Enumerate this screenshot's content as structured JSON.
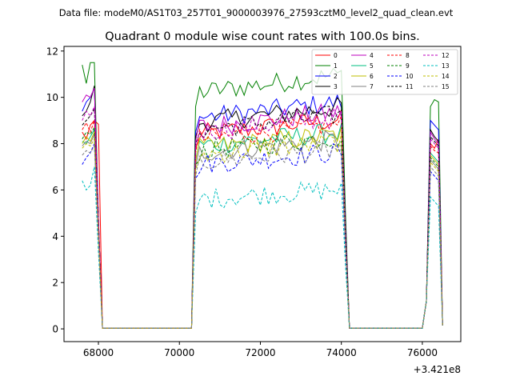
{
  "figure": {
    "suptitle": "Data file: modeM0/AS1T03_257T01_9000003976_27593cztM0_level2_quad_clean.evt",
    "title": "Quadrant 0 module wise count rates with 100.0s bins.",
    "offset_label": "+3.421e8"
  },
  "chart_data": {
    "type": "line",
    "title": "Quadrant 0 module wise count rates with 100.0s bins.",
    "xlabel": "",
    "ylabel": "",
    "x_offset": 342100000,
    "xlim": [
      67150,
      76950
    ],
    "ylim": [
      -0.55,
      12.2
    ],
    "xticks": [
      68000,
      70000,
      72000,
      74000,
      76000
    ],
    "xtick_labels": [
      "68000",
      "70000",
      "72000",
      "74000",
      "76000"
    ],
    "yticks": [
      0,
      2,
      4,
      6,
      8,
      10,
      12
    ],
    "ytick_labels": [
      "0",
      "2",
      "4",
      "6",
      "8",
      "10",
      "12"
    ],
    "grid": false,
    "legend_position": "top-right",
    "legend_columns": 4,
    "bin_width": 100,
    "segments": [
      {
        "x_start": 67600,
        "n": 5
      },
      {
        "x_start": 68000,
        "n": 22,
        "gap": true
      },
      {
        "x_start": 70300,
        "n": 36
      },
      {
        "x_start": 73900,
        "n": 3
      },
      {
        "x_start": 74200,
        "n": 19,
        "gap": true
      },
      {
        "x_start": 76100,
        "n": 5
      }
    ],
    "series": [
      {
        "name": "0",
        "color": "#ff0000",
        "dash": "solid",
        "level": 8.4,
        "first": [
          8.5,
          8.2,
          8.8,
          9.0,
          9.3
        ],
        "last": [
          8.0,
          7.8,
          8.2
        ]
      },
      {
        "name": "1",
        "color": "#008000",
        "dash": "solid",
        "level": 10.2,
        "first": [
          11.4,
          10.6,
          11.5,
          11.5,
          5.0
        ],
        "last": [
          9.6,
          9.9,
          9.8
        ]
      },
      {
        "name": "2",
        "color": "#0000ff",
        "dash": "solid",
        "level": 9.1,
        "first": [
          9.4,
          9.8,
          10.0,
          10.4,
          5.0
        ],
        "last": [
          9.0,
          8.8,
          8.6
        ]
      },
      {
        "name": "3",
        "color": "#000000",
        "dash": "solid",
        "level": 8.9,
        "first": [
          9.2,
          9.4,
          9.8,
          10.5,
          5.0
        ],
        "last": [
          8.6,
          8.3,
          8.1
        ]
      },
      {
        "name": "4",
        "color": "#bf00bf",
        "dash": "solid",
        "level": 8.7,
        "first": [
          9.8,
          10.1,
          10.0,
          10.4,
          5.0
        ],
        "last": [
          8.5,
          8.2,
          8.0
        ]
      },
      {
        "name": "5",
        "color": "#00bf80",
        "dash": "solid",
        "level": 7.9,
        "first": [
          8.1,
          8.0,
          8.3,
          8.6,
          4.5
        ],
        "last": [
          7.6,
          7.4,
          7.2
        ]
      },
      {
        "name": "6",
        "color": "#bfbf00",
        "dash": "solid",
        "level": 7.8,
        "first": [
          8.0,
          8.3,
          8.1,
          8.5,
          4.4
        ],
        "last": [
          7.5,
          7.3,
          7.1
        ]
      },
      {
        "name": "7",
        "color": "#808080",
        "dash": "solid",
        "level": 7.6,
        "first": [
          7.9,
          8.1,
          8.0,
          8.4,
          4.3
        ],
        "last": [
          7.3,
          7.1,
          6.9
        ]
      },
      {
        "name": "8",
        "color": "#ff0000",
        "dash": "dashed",
        "level": 8.2,
        "first": [
          8.6,
          8.9,
          8.5,
          9.0,
          4.8
        ],
        "last": [
          7.9,
          7.7,
          7.6
        ]
      },
      {
        "name": "9",
        "color": "#008000",
        "dash": "dashed",
        "level": 7.7,
        "first": [
          8.2,
          8.5,
          8.4,
          8.7,
          4.5
        ],
        "last": [
          7.4,
          7.2,
          7.0
        ]
      },
      {
        "name": "10",
        "color": "#0000ff",
        "dash": "dashed",
        "level": 7.1,
        "first": [
          7.1,
          7.4,
          7.6,
          8.0,
          4.2
        ],
        "last": [
          6.8,
          6.6,
          6.4
        ]
      },
      {
        "name": "11",
        "color": "#000000",
        "dash": "dashed",
        "level": 8.6,
        "first": [
          8.8,
          9.0,
          9.2,
          9.5,
          4.9
        ],
        "last": [
          8.3,
          8.1,
          7.9
        ]
      },
      {
        "name": "12",
        "color": "#bf00bf",
        "dash": "dashed",
        "level": 8.5,
        "first": [
          9.0,
          9.4,
          9.2,
          9.6,
          5.0
        ],
        "last": [
          8.2,
          8.0,
          7.8
        ]
      },
      {
        "name": "13",
        "color": "#00bfbf",
        "dash": "dashed",
        "level": 5.6,
        "first": [
          6.4,
          6.0,
          6.2,
          7.0,
          3.5
        ],
        "last": [
          5.7,
          5.5,
          5.3
        ]
      },
      {
        "name": "14",
        "color": "#bfbf00",
        "dash": "dashed",
        "level": 7.5,
        "first": [
          7.8,
          8.0,
          7.9,
          8.2,
          4.3
        ],
        "last": [
          7.2,
          7.0,
          6.8
        ]
      },
      {
        "name": "15",
        "color": "#808080",
        "dash": "dashed",
        "level": 7.2,
        "first": [
          7.5,
          7.7,
          7.6,
          7.9,
          4.2
        ],
        "last": [
          7.0,
          6.8,
          6.6
        ]
      }
    ]
  }
}
